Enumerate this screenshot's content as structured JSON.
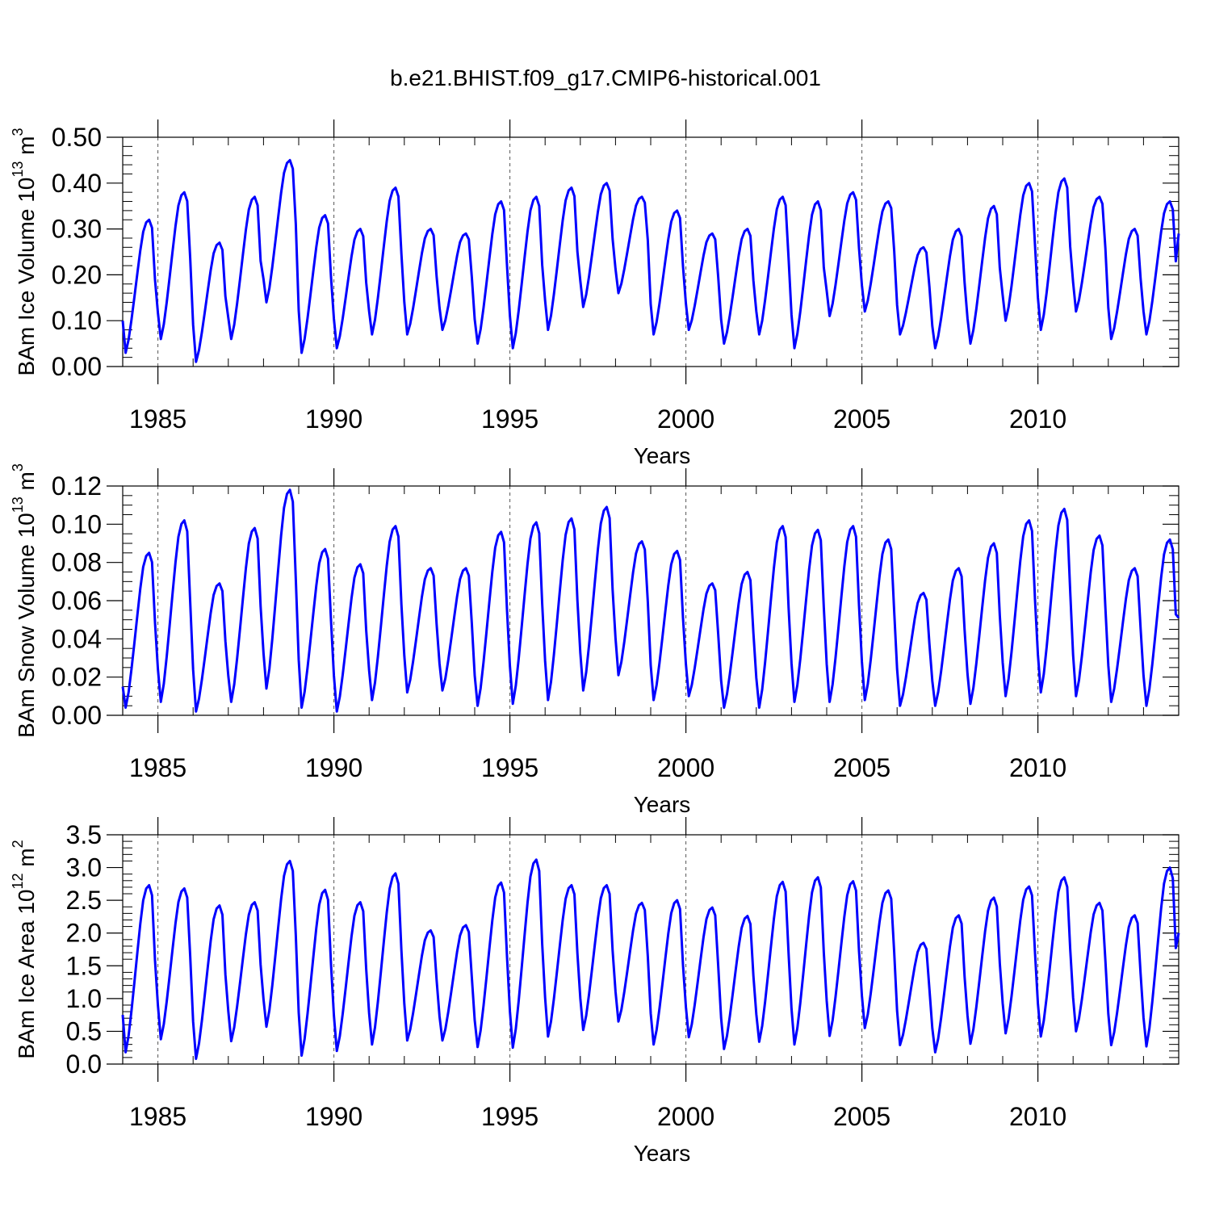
{
  "title": "b.e21.BHIST.f09_g17.CMIP6-historical.001",
  "line_color": "#0000ff",
  "chart_data": [
    {
      "type": "line",
      "id": "ice-volume",
      "xlabel": "Years",
      "ylabel_base": "BAm Ice Volume 10",
      "ylabel_exp": "13",
      "ylabel_unit": " m",
      "ylabel_unit_exp": "3",
      "xlim": [
        1984,
        2014
      ],
      "ylim": [
        0.0,
        0.5
      ],
      "xticks": [
        1985,
        1990,
        1995,
        2000,
        2005,
        2010
      ],
      "xtick_labels": [
        "1985",
        "1990",
        "1995",
        "2000",
        "2005",
        "2010"
      ],
      "yticks": [
        0.0,
        0.1,
        0.2,
        0.3,
        0.4,
        0.5
      ],
      "ytick_labels": [
        "0.00",
        "0.10",
        "0.20",
        "0.30",
        "0.40",
        "0.50"
      ],
      "minor_yticks": [
        0.02,
        0.04,
        0.06,
        0.08,
        0.12,
        0.14,
        0.16,
        0.18,
        0.22,
        0.24,
        0.26,
        0.28,
        0.32,
        0.34,
        0.36,
        0.38,
        0.42,
        0.44,
        0.46,
        0.48
      ],
      "grid_x_dashed": true,
      "annual": [
        {
          "min": 0.03,
          "max": 0.32
        },
        {
          "min": 0.06,
          "max": 0.38
        },
        {
          "min": 0.01,
          "max": 0.27
        },
        {
          "min": 0.06,
          "max": 0.37
        },
        {
          "min": 0.14,
          "max": 0.45
        },
        {
          "min": 0.03,
          "max": 0.33
        },
        {
          "min": 0.04,
          "max": 0.3
        },
        {
          "min": 0.07,
          "max": 0.39
        },
        {
          "min": 0.07,
          "max": 0.3
        },
        {
          "min": 0.08,
          "max": 0.29
        },
        {
          "min": 0.05,
          "max": 0.36
        },
        {
          "min": 0.04,
          "max": 0.37
        },
        {
          "min": 0.08,
          "max": 0.39
        },
        {
          "min": 0.13,
          "max": 0.4
        },
        {
          "min": 0.16,
          "max": 0.37
        },
        {
          "min": 0.07,
          "max": 0.34
        },
        {
          "min": 0.08,
          "max": 0.29
        },
        {
          "min": 0.05,
          "max": 0.3
        },
        {
          "min": 0.07,
          "max": 0.37
        },
        {
          "min": 0.04,
          "max": 0.36
        },
        {
          "min": 0.11,
          "max": 0.38
        },
        {
          "min": 0.12,
          "max": 0.36
        },
        {
          "min": 0.07,
          "max": 0.26
        },
        {
          "min": 0.04,
          "max": 0.3
        },
        {
          "min": 0.05,
          "max": 0.35
        },
        {
          "min": 0.1,
          "max": 0.4
        },
        {
          "min": 0.08,
          "max": 0.41
        },
        {
          "min": 0.12,
          "max": 0.37
        },
        {
          "min": 0.06,
          "max": 0.3
        },
        {
          "min": 0.07,
          "max": 0.36
        }
      ],
      "start_value": 0.1,
      "end_value": 0.29
    },
    {
      "type": "line",
      "id": "snow-volume",
      "xlabel": "Years",
      "ylabel_base": "BAm Snow Volume 10",
      "ylabel_exp": "13",
      "ylabel_unit": " m",
      "ylabel_unit_exp": "3",
      "xlim": [
        1984,
        2014
      ],
      "ylim": [
        0.0,
        0.12
      ],
      "xticks": [
        1985,
        1990,
        1995,
        2000,
        2005,
        2010
      ],
      "xtick_labels": [
        "1985",
        "1990",
        "1995",
        "2000",
        "2005",
        "2010"
      ],
      "yticks": [
        0.0,
        0.02,
        0.04,
        0.06,
        0.08,
        0.1,
        0.12
      ],
      "ytick_labels": [
        "0.00",
        "0.02",
        "0.04",
        "0.06",
        "0.08",
        "0.10",
        "0.12"
      ],
      "minor_yticks": [
        0.005,
        0.01,
        0.015,
        0.025,
        0.03,
        0.035,
        0.045,
        0.05,
        0.055,
        0.065,
        0.07,
        0.075,
        0.085,
        0.09,
        0.095,
        0.105,
        0.11,
        0.115
      ],
      "grid_x_dashed": true,
      "annual": [
        {
          "min": 0.004,
          "max": 0.085
        },
        {
          "min": 0.007,
          "max": 0.102
        },
        {
          "min": 0.002,
          "max": 0.069
        },
        {
          "min": 0.007,
          "max": 0.098
        },
        {
          "min": 0.014,
          "max": 0.118
        },
        {
          "min": 0.004,
          "max": 0.087
        },
        {
          "min": 0.002,
          "max": 0.079
        },
        {
          "min": 0.008,
          "max": 0.099
        },
        {
          "min": 0.012,
          "max": 0.077
        },
        {
          "min": 0.013,
          "max": 0.077
        },
        {
          "min": 0.005,
          "max": 0.096
        },
        {
          "min": 0.006,
          "max": 0.101
        },
        {
          "min": 0.008,
          "max": 0.103
        },
        {
          "min": 0.013,
          "max": 0.109
        },
        {
          "min": 0.021,
          "max": 0.091
        },
        {
          "min": 0.008,
          "max": 0.086
        },
        {
          "min": 0.01,
          "max": 0.069
        },
        {
          "min": 0.004,
          "max": 0.075
        },
        {
          "min": 0.004,
          "max": 0.099
        },
        {
          "min": 0.007,
          "max": 0.097
        },
        {
          "min": 0.007,
          "max": 0.099
        },
        {
          "min": 0.008,
          "max": 0.092
        },
        {
          "min": 0.005,
          "max": 0.064
        },
        {
          "min": 0.005,
          "max": 0.077
        },
        {
          "min": 0.006,
          "max": 0.09
        },
        {
          "min": 0.01,
          "max": 0.102
        },
        {
          "min": 0.012,
          "max": 0.108
        },
        {
          "min": 0.01,
          "max": 0.094
        },
        {
          "min": 0.007,
          "max": 0.077
        },
        {
          "min": 0.005,
          "max": 0.092
        }
      ],
      "start_value": 0.015,
      "end_value": 0.051
    },
    {
      "type": "line",
      "id": "ice-area",
      "xlabel": "Years",
      "ylabel_base": "BAm Ice Area 10",
      "ylabel_exp": "12",
      "ylabel_unit": " m",
      "ylabel_unit_exp": "2",
      "xlim": [
        1984,
        2014
      ],
      "ylim": [
        0.0,
        3.5
      ],
      "xticks": [
        1985,
        1990,
        1995,
        2000,
        2005,
        2010
      ],
      "xtick_labels": [
        "1985",
        "1990",
        "1995",
        "2000",
        "2005",
        "2010"
      ],
      "yticks": [
        0.0,
        0.5,
        1.0,
        1.5,
        2.0,
        2.5,
        3.0,
        3.5
      ],
      "ytick_labels": [
        "0.0",
        "0.5",
        "1.0",
        "1.5",
        "2.0",
        "2.5",
        "3.0",
        "3.5"
      ],
      "minor_yticks": [
        0.1,
        0.2,
        0.3,
        0.4,
        0.6,
        0.7,
        0.8,
        0.9,
        1.1,
        1.2,
        1.3,
        1.4,
        1.6,
        1.7,
        1.8,
        1.9,
        2.1,
        2.2,
        2.3,
        2.4,
        2.6,
        2.7,
        2.8,
        2.9,
        3.1,
        3.2,
        3.3,
        3.4
      ],
      "grid_x_dashed": true,
      "annual": [
        {
          "min": 0.18,
          "max": 2.73
        },
        {
          "min": 0.38,
          "max": 2.68
        },
        {
          "min": 0.08,
          "max": 2.42
        },
        {
          "min": 0.35,
          "max": 2.47
        },
        {
          "min": 0.57,
          "max": 3.1
        },
        {
          "min": 0.13,
          "max": 2.66
        },
        {
          "min": 0.2,
          "max": 2.47
        },
        {
          "min": 0.3,
          "max": 2.91
        },
        {
          "min": 0.36,
          "max": 2.04
        },
        {
          "min": 0.36,
          "max": 2.12
        },
        {
          "min": 0.26,
          "max": 2.77
        },
        {
          "min": 0.25,
          "max": 3.12
        },
        {
          "min": 0.42,
          "max": 2.73
        },
        {
          "min": 0.52,
          "max": 2.73
        },
        {
          "min": 0.65,
          "max": 2.46
        },
        {
          "min": 0.3,
          "max": 2.5
        },
        {
          "min": 0.41,
          "max": 2.39
        },
        {
          "min": 0.23,
          "max": 2.26
        },
        {
          "min": 0.34,
          "max": 2.78
        },
        {
          "min": 0.3,
          "max": 2.85
        },
        {
          "min": 0.43,
          "max": 2.79
        },
        {
          "min": 0.55,
          "max": 2.65
        },
        {
          "min": 0.29,
          "max": 1.85
        },
        {
          "min": 0.18,
          "max": 2.27
        },
        {
          "min": 0.31,
          "max": 2.54
        },
        {
          "min": 0.47,
          "max": 2.71
        },
        {
          "min": 0.42,
          "max": 2.85
        },
        {
          "min": 0.5,
          "max": 2.46
        },
        {
          "min": 0.29,
          "max": 2.27
        },
        {
          "min": 0.27,
          "max": 3.0
        }
      ],
      "start_value": 0.75,
      "end_value": 2.0
    }
  ]
}
